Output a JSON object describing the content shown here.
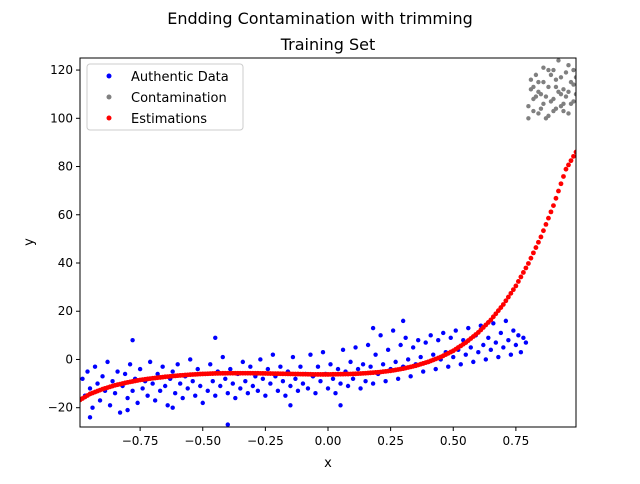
{
  "chart_data": {
    "type": "scatter",
    "suptitle": "Endding Contamination with trimming",
    "title": "Training Set",
    "xlabel": "x",
    "ylabel": "y",
    "xlim": [
      -0.99,
      0.99
    ],
    "ylim": [
      -28,
      125
    ],
    "x_ticks": [
      "−0.75",
      "−0.50",
      "−0.25",
      "0.00",
      "0.25",
      "0.50",
      "0.75"
    ],
    "x_tick_values": [
      -0.75,
      -0.5,
      -0.25,
      0.0,
      0.25,
      0.5,
      0.75
    ],
    "y_ticks": [
      "−20",
      "0",
      "20",
      "40",
      "60",
      "80",
      "100",
      "120"
    ],
    "y_tick_values": [
      -20,
      0,
      20,
      40,
      60,
      80,
      100,
      120
    ],
    "grid": false,
    "legend_position": "upper-left",
    "series": [
      {
        "name": "Authentic Data",
        "color": "#0000ff",
        "points": [
          [
            -0.98,
            -8
          ],
          [
            -0.97,
            -15
          ],
          [
            -0.96,
            -5
          ],
          [
            -0.95,
            -12
          ],
          [
            -0.94,
            -20
          ],
          [
            -0.93,
            -3
          ],
          [
            -0.92,
            -10
          ],
          [
            -0.91,
            -17
          ],
          [
            -0.9,
            -7
          ],
          [
            -0.89,
            -13
          ],
          [
            -0.88,
            -1
          ],
          [
            -0.87,
            -19
          ],
          [
            -0.86,
            -9
          ],
          [
            -0.85,
            -14
          ],
          [
            -0.84,
            -5
          ],
          [
            -0.83,
            -22
          ],
          [
            -0.82,
            -11
          ],
          [
            -0.81,
            -6
          ],
          [
            -0.8,
            -16
          ],
          [
            -0.79,
            -2
          ],
          [
            -0.78,
            -13
          ],
          [
            -0.77,
            -8
          ],
          [
            -0.76,
            -18
          ],
          [
            -0.75,
            -4
          ],
          [
            -0.74,
            -12
          ],
          [
            -0.73,
            -9
          ],
          [
            -0.72,
            -15
          ],
          [
            -0.71,
            -1
          ],
          [
            -0.7,
            -10
          ],
          [
            -0.69,
            -17
          ],
          [
            -0.68,
            -6
          ],
          [
            -0.67,
            -13
          ],
          [
            -0.66,
            -3
          ],
          [
            -0.65,
            -11
          ],
          [
            -0.64,
            -19
          ],
          [
            -0.63,
            -8
          ],
          [
            -0.62,
            -5
          ],
          [
            -0.61,
            -14
          ],
          [
            -0.6,
            -2
          ],
          [
            -0.59,
            -10
          ],
          [
            -0.58,
            -16
          ],
          [
            -0.57,
            -7
          ],
          [
            -0.56,
            -12
          ],
          [
            -0.55,
            0
          ],
          [
            -0.54,
            -9
          ],
          [
            -0.53,
            -15
          ],
          [
            -0.52,
            -4
          ],
          [
            -0.51,
            -11
          ],
          [
            -0.5,
            -18
          ],
          [
            -0.49,
            -6
          ],
          [
            -0.48,
            -13
          ],
          [
            -0.47,
            -2
          ],
          [
            -0.46,
            -9
          ],
          [
            -0.45,
            -15
          ],
          [
            -0.44,
            -5
          ],
          [
            -0.43,
            -11
          ],
          [
            -0.42,
            1
          ],
          [
            -0.41,
            -8
          ],
          [
            -0.4,
            -14
          ],
          [
            -0.39,
            -4
          ],
          [
            -0.38,
            -10
          ],
          [
            -0.37,
            -16
          ],
          [
            -0.36,
            -6
          ],
          [
            -0.35,
            -12
          ],
          [
            -0.34,
            -1
          ],
          [
            -0.33,
            -9
          ],
          [
            -0.32,
            -14
          ],
          [
            -0.31,
            -3
          ],
          [
            -0.3,
            -11
          ],
          [
            -0.29,
            -7
          ],
          [
            -0.28,
            -13
          ],
          [
            -0.27,
            0
          ],
          [
            -0.26,
            -8
          ],
          [
            -0.25,
            -15
          ],
          [
            -0.24,
            -4
          ],
          [
            -0.23,
            -10
          ],
          [
            -0.22,
            2
          ],
          [
            -0.21,
            -7
          ],
          [
            -0.2,
            -13
          ],
          [
            -0.19,
            -3
          ],
          [
            -0.18,
            -9
          ],
          [
            -0.17,
            -15
          ],
          [
            -0.16,
            -5
          ],
          [
            -0.15,
            -11
          ],
          [
            -0.14,
            1
          ],
          [
            -0.13,
            -8
          ],
          [
            -0.12,
            -13
          ],
          [
            -0.11,
            -3
          ],
          [
            -0.1,
            -10
          ],
          [
            -0.09,
            -6
          ],
          [
            -0.08,
            -12
          ],
          [
            -0.07,
            2
          ],
          [
            -0.06,
            -7
          ],
          [
            -0.05,
            -14
          ],
          [
            -0.04,
            -3
          ],
          [
            -0.03,
            -9
          ],
          [
            -0.02,
            3
          ],
          [
            -0.01,
            -6
          ],
          [
            0.0,
            -12
          ],
          [
            0.01,
            -2
          ],
          [
            0.02,
            -8
          ],
          [
            0.03,
            -14
          ],
          [
            0.04,
            -4
          ],
          [
            0.05,
            -10
          ],
          [
            0.06,
            4
          ],
          [
            0.07,
            -5
          ],
          [
            0.08,
            -11
          ],
          [
            0.09,
            -1
          ],
          [
            0.1,
            -8
          ],
          [
            0.11,
            5
          ],
          [
            0.12,
            -4
          ],
          [
            0.13,
            -12
          ],
          [
            0.14,
            -2
          ],
          [
            0.15,
            -9
          ],
          [
            0.16,
            6
          ],
          [
            0.17,
            -3
          ],
          [
            0.18,
            -10
          ],
          [
            0.19,
            2
          ],
          [
            0.2,
            -6
          ],
          [
            0.21,
            10
          ],
          [
            0.22,
            -2
          ],
          [
            0.23,
            -9
          ],
          [
            0.24,
            4
          ],
          [
            0.25,
            -4
          ],
          [
            0.26,
            12
          ],
          [
            0.27,
            -1
          ],
          [
            0.28,
            -8
          ],
          [
            0.29,
            6
          ],
          [
            0.3,
            -3
          ],
          [
            0.31,
            9
          ],
          [
            0.32,
            0
          ],
          [
            0.33,
            -7
          ],
          [
            0.34,
            5
          ],
          [
            0.35,
            -2
          ],
          [
            0.36,
            8
          ],
          [
            0.37,
            1
          ],
          [
            0.38,
            -5
          ],
          [
            0.39,
            7
          ],
          [
            0.4,
            -1
          ],
          [
            0.41,
            10
          ],
          [
            0.42,
            2
          ],
          [
            0.43,
            -4
          ],
          [
            0.44,
            8
          ],
          [
            0.45,
            0
          ],
          [
            0.46,
            11
          ],
          [
            0.47,
            3
          ],
          [
            0.48,
            -3
          ],
          [
            0.49,
            9
          ],
          [
            0.5,
            1
          ],
          [
            0.51,
            12
          ],
          [
            0.52,
            4
          ],
          [
            0.53,
            -2
          ],
          [
            0.54,
            8
          ],
          [
            0.55,
            2
          ],
          [
            0.56,
            13
          ],
          [
            0.57,
            5
          ],
          [
            0.58,
            -1
          ],
          [
            0.59,
            10
          ],
          [
            0.6,
            3
          ],
          [
            0.61,
            14
          ],
          [
            0.62,
            6
          ],
          [
            0.63,
            0
          ],
          [
            0.64,
            9
          ],
          [
            0.65,
            4
          ],
          [
            0.66,
            15
          ],
          [
            0.67,
            7
          ],
          [
            0.68,
            1
          ],
          [
            0.69,
            11
          ],
          [
            0.7,
            5
          ],
          [
            0.71,
            16
          ],
          [
            0.72,
            8
          ],
          [
            0.73,
            2
          ],
          [
            0.74,
            12
          ],
          [
            0.75,
            6
          ],
          [
            0.76,
            10
          ],
          [
            0.77,
            3
          ],
          [
            0.78,
            9
          ],
          [
            0.79,
            7
          ],
          [
            -0.95,
            -24
          ],
          [
            -0.8,
            -21
          ],
          [
            -0.62,
            -20
          ],
          [
            -0.4,
            -27
          ],
          [
            -0.15,
            -19
          ],
          [
            0.05,
            -19
          ],
          [
            0.18,
            13
          ],
          [
            0.3,
            16
          ],
          [
            -0.78,
            8
          ],
          [
            -0.45,
            9
          ]
        ]
      },
      {
        "name": "Contamination",
        "color": "#808080",
        "points": [
          [
            0.8,
            105
          ],
          [
            0.81,
            112
          ],
          [
            0.82,
            108
          ],
          [
            0.83,
            118
          ],
          [
            0.84,
            102
          ],
          [
            0.85,
            110
          ],
          [
            0.86,
            115
          ],
          [
            0.87,
            100
          ],
          [
            0.88,
            113
          ],
          [
            0.89,
            107
          ],
          [
            0.9,
            120
          ],
          [
            0.91,
            104
          ],
          [
            0.92,
            111
          ],
          [
            0.93,
            117
          ],
          [
            0.94,
            103
          ],
          [
            0.95,
            109
          ],
          [
            0.96,
            122
          ],
          [
            0.97,
            106
          ],
          [
            0.98,
            114
          ],
          [
            0.99,
            110
          ],
          [
            0.8,
            100
          ],
          [
            0.81,
            116
          ],
          [
            0.83,
            109
          ],
          [
            0.85,
            104
          ],
          [
            0.86,
            121
          ],
          [
            0.88,
            101
          ],
          [
            0.89,
            118
          ],
          [
            0.9,
            108
          ],
          [
            0.91,
            113
          ],
          [
            0.92,
            124
          ],
          [
            0.93,
            105
          ],
          [
            0.94,
            112
          ],
          [
            0.95,
            119
          ],
          [
            0.96,
            102
          ],
          [
            0.97,
            115
          ],
          [
            0.98,
            107
          ],
          [
            0.99,
            117
          ],
          [
            0.82,
            113
          ],
          [
            0.84,
            111
          ],
          [
            0.87,
            109
          ],
          [
            0.9,
            103
          ],
          [
            0.93,
            110
          ],
          [
            0.96,
            111
          ],
          [
            0.94,
            106
          ],
          [
            0.91,
            116
          ],
          [
            0.88,
            120
          ],
          [
            0.86,
            106
          ],
          [
            0.84,
            115
          ],
          [
            0.82,
            103
          ],
          [
            0.98,
            120
          ]
        ]
      },
      {
        "name": "Estimations",
        "color": "#ff0000",
        "points": [
          [
            -0.99,
            -16.8
          ],
          [
            -0.95,
            -14.3
          ],
          [
            -0.9,
            -12.3
          ],
          [
            -0.85,
            -10.7
          ],
          [
            -0.8,
            -9.5
          ],
          [
            -0.75,
            -8.5
          ],
          [
            -0.7,
            -7.8
          ],
          [
            -0.65,
            -7.2
          ],
          [
            -0.6,
            -6.7
          ],
          [
            -0.55,
            -6.3
          ],
          [
            -0.5,
            -6.0
          ],
          [
            -0.45,
            -5.8
          ],
          [
            -0.4,
            -5.7
          ],
          [
            -0.35,
            -5.7
          ],
          [
            -0.3,
            -5.7
          ],
          [
            -0.25,
            -5.8
          ],
          [
            -0.2,
            -5.9
          ],
          [
            -0.15,
            -6.0
          ],
          [
            -0.1,
            -6.1
          ],
          [
            -0.05,
            -6.2
          ],
          [
            0.0,
            -6.2
          ],
          [
            0.05,
            -6.1
          ],
          [
            0.1,
            -6.0
          ],
          [
            0.15,
            -5.7
          ],
          [
            0.2,
            -5.3
          ],
          [
            0.25,
            -4.7
          ],
          [
            0.3,
            -3.8
          ],
          [
            0.35,
            -2.6
          ],
          [
            0.4,
            -1.0
          ],
          [
            0.45,
            1.0
          ],
          [
            0.5,
            3.6
          ],
          [
            0.55,
            7.0
          ],
          [
            0.6,
            11.2
          ],
          [
            0.65,
            16.4
          ],
          [
            0.7,
            22.8
          ],
          [
            0.75,
            30.5
          ],
          [
            0.8,
            39.8
          ],
          [
            0.85,
            50.8
          ],
          [
            0.9,
            63.8
          ],
          [
            0.95,
            78.9
          ],
          [
            0.99,
            86.0
          ]
        ]
      }
    ]
  }
}
